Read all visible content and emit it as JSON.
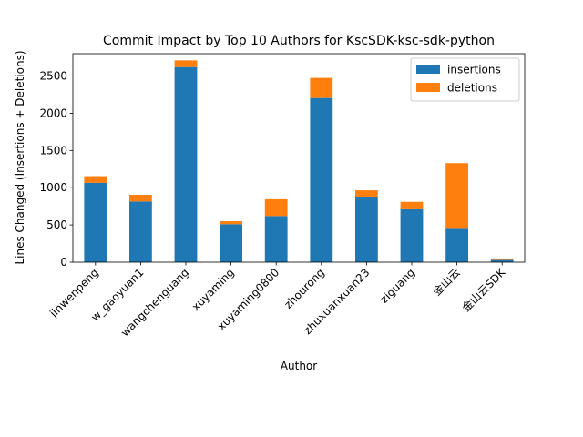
{
  "chart_data": {
    "type": "bar",
    "stacked": true,
    "title": "Commit Impact by Top 10 Authors for KscSDK-ksc-sdk-python",
    "xlabel": "Author",
    "ylabel": "Lines Changed (Insertions + Deletions)",
    "ylim": [
      0,
      2800
    ],
    "yticks": [
      0,
      500,
      1000,
      1500,
      2000,
      2500
    ],
    "legend_position": "top-right",
    "grid": false,
    "categories": [
      "jinwenpeng",
      "w_gaoyuan1",
      "wangchenguang",
      "xuyaming",
      "xuyaming0800",
      "zhourong",
      "zhuxuanxuan23",
      "ziguang",
      "金山云",
      "金山云SDK"
    ],
    "series": [
      {
        "name": "insertions",
        "color": "#1f77b4",
        "values": [
          1065,
          815,
          2620,
          510,
          620,
          2205,
          880,
          710,
          460,
          30
        ]
      },
      {
        "name": "deletions",
        "color": "#ff7f0e",
        "values": [
          90,
          90,
          90,
          40,
          225,
          270,
          85,
          100,
          870,
          20
        ]
      }
    ]
  }
}
